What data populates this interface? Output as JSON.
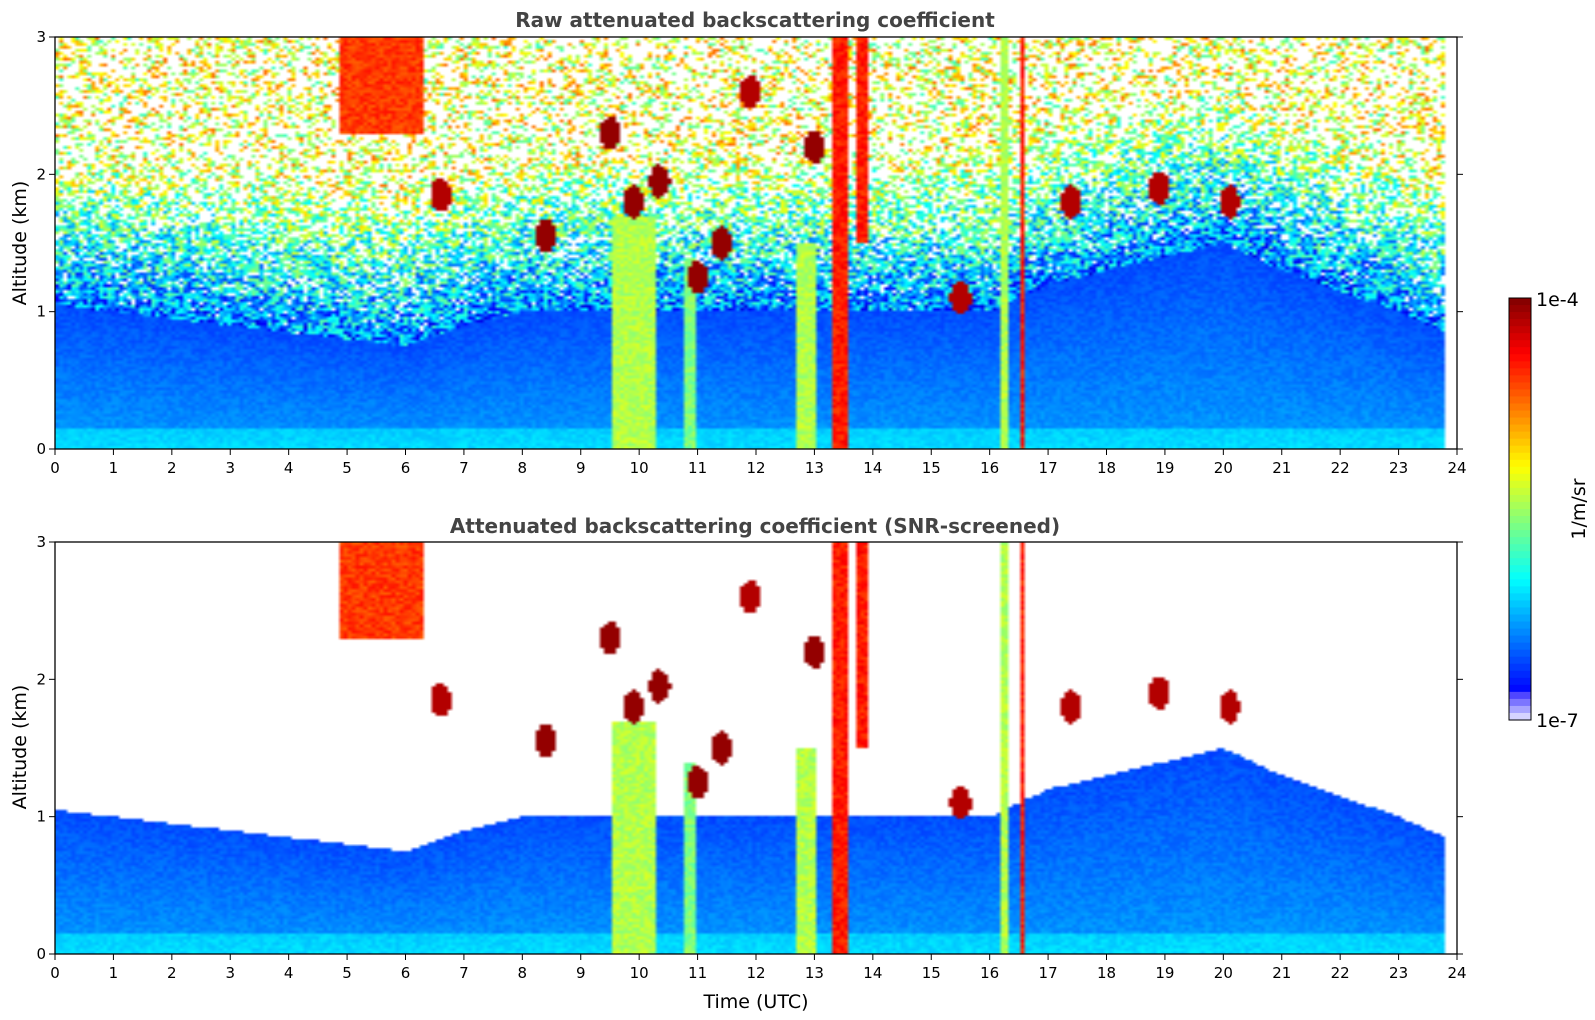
{
  "chart_data": [
    {
      "type": "heatmap",
      "title": "Raw attenuated backscattering coefficient",
      "xlabel": "",
      "ylabel": "Altitude (km)",
      "xlim": [
        0,
        24
      ],
      "ylim": [
        0,
        3
      ],
      "x_ticks": [
        "0",
        "1",
        "2",
        "3",
        "4",
        "5",
        "6",
        "7",
        "8",
        "9",
        "10",
        "11",
        "12",
        "13",
        "14",
        "15",
        "16",
        "17",
        "18",
        "19",
        "20",
        "21",
        "22",
        "23",
        "24"
      ],
      "y_ticks": [
        "0",
        "1",
        "2",
        "3"
      ],
      "data_end_time": 23.8,
      "screened": false,
      "colorscale": "jet",
      "features": [
        {
          "kind": "boundary_layer_top",
          "time": [
            0,
            2,
            4,
            6,
            7,
            8,
            9,
            12,
            14,
            16,
            17,
            18,
            19,
            20,
            21,
            22,
            23,
            23.8
          ],
          "altitude": [
            1.05,
            0.95,
            0.85,
            0.75,
            0.9,
            1.0,
            1.0,
            1.0,
            1.0,
            1.0,
            1.2,
            1.3,
            1.4,
            1.5,
            1.3,
            1.15,
            1.0,
            0.85
          ]
        },
        {
          "kind": "aerosol_layer",
          "t0": 4.9,
          "t1": 6.3,
          "z0": 2.3,
          "z1": 3.0,
          "level": 0.82
        },
        {
          "kind": "cloud_column",
          "t0": 13.3,
          "t1": 13.6,
          "z0": 0.0,
          "z1": 3.0,
          "level": 0.85
        },
        {
          "kind": "cloud_column",
          "t0": 16.5,
          "t1": 16.6,
          "z0": 0.0,
          "z1": 3.0,
          "level": 0.85
        },
        {
          "kind": "cloud_column",
          "t0": 13.7,
          "t1": 13.9,
          "z0": 1.5,
          "z1": 3.0,
          "level": 0.85
        },
        {
          "kind": "precip_streak",
          "t0": 9.5,
          "t1": 10.3,
          "z0": 0.0,
          "z1": 1.7,
          "level": 0.55
        },
        {
          "kind": "precip_streak",
          "t0": 10.8,
          "t1": 11.0,
          "z0": 0.0,
          "z1": 1.4,
          "level": 0.5
        },
        {
          "kind": "precip_streak",
          "t0": 12.7,
          "t1": 13.0,
          "z0": 0.0,
          "z1": 1.5,
          "level": 0.55
        },
        {
          "kind": "precip_streak",
          "t0": 16.2,
          "t1": 16.3,
          "z0": 0.0,
          "z1": 3.0,
          "level": 0.55
        },
        {
          "kind": "cloud_patch",
          "t": 9.9,
          "z": 1.8,
          "level": 0.98
        },
        {
          "kind": "cloud_patch",
          "t": 10.35,
          "z": 1.95,
          "level": 0.98
        },
        {
          "kind": "cloud_patch",
          "t": 11.0,
          "z": 1.25,
          "level": 0.98
        },
        {
          "kind": "cloud_patch",
          "t": 11.4,
          "z": 1.5,
          "level": 0.98
        },
        {
          "kind": "cloud_patch",
          "t": 8.4,
          "z": 1.55,
          "level": 0.98
        },
        {
          "kind": "cloud_patch",
          "t": 11.9,
          "z": 2.6,
          "level": 0.95
        },
        {
          "kind": "cloud_patch",
          "t": 13.0,
          "z": 2.2,
          "level": 0.98
        },
        {
          "kind": "cloud_patch",
          "t": 9.5,
          "z": 2.3,
          "level": 0.98
        },
        {
          "kind": "cloud_patch",
          "t": 6.6,
          "z": 1.85,
          "level": 0.95
        },
        {
          "kind": "cloud_patch",
          "t": 15.5,
          "z": 1.1,
          "level": 0.95
        },
        {
          "kind": "cloud_patch",
          "t": 17.4,
          "z": 1.8,
          "level": 0.95
        },
        {
          "kind": "cloud_patch",
          "t": 18.9,
          "z": 1.9,
          "level": 0.95
        },
        {
          "kind": "cloud_patch",
          "t": 20.1,
          "z": 1.8,
          "level": 0.95
        }
      ]
    },
    {
      "type": "heatmap",
      "title": "Attenuated backscattering coefficient (SNR-screened)",
      "xlabel": "Time (UTC)",
      "ylabel": "Altitude (km)",
      "xlim": [
        0,
        24
      ],
      "ylim": [
        0,
        3
      ],
      "x_ticks": [
        "0",
        "1",
        "2",
        "3",
        "4",
        "5",
        "6",
        "7",
        "8",
        "9",
        "10",
        "11",
        "12",
        "13",
        "14",
        "15",
        "16",
        "17",
        "18",
        "19",
        "20",
        "21",
        "22",
        "23",
        "24"
      ],
      "y_ticks": [
        "0",
        "1",
        "2",
        "3"
      ],
      "data_end_time": 23.8,
      "screened": true,
      "colorscale": "jet"
    }
  ],
  "colorbar": {
    "label": "1/m/sr",
    "max_label": "1e-4",
    "min_label": "1e-7"
  }
}
